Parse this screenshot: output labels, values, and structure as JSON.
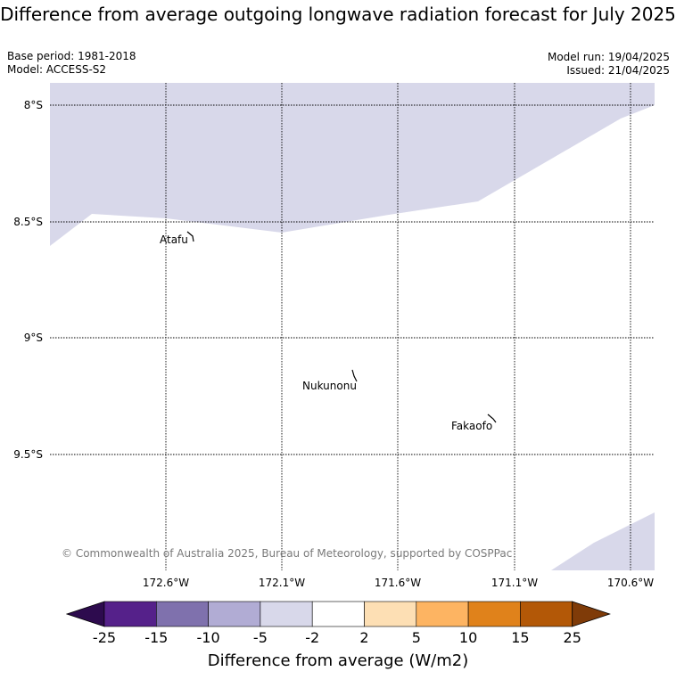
{
  "title": "Difference from average outgoing longwave radiation forecast for July 2025",
  "base_period": "Base period: 1981-2018",
  "model": "Model: ACCESS-S2",
  "model_run": "Model run: 19/04/2025",
  "issued": "Issued: 21/04/2025",
  "lat_labels": [
    "8°S",
    "8.5°S",
    "9°S",
    "9.5°S"
  ],
  "lon_labels": [
    "172.6°W",
    "172.1°W",
    "171.6°W",
    "171.1°W",
    "170.6°W"
  ],
  "places": [
    "Atafu",
    "Nukunonu",
    "Fakaofo"
  ],
  "copyright": "© Commonwealth of Australia 2025, Bureau of Meteorology, supported by COSPPac",
  "colorbar": {
    "title": "Difference from average (W/m2)",
    "ticks": [
      "-25",
      "-15",
      "-10",
      "-5",
      "-2",
      "2",
      "5",
      "10",
      "15",
      "25"
    ],
    "colors": {
      "under": "#2d0b4e",
      "bins": [
        "#55218a",
        "#7f71ad",
        "#b1acd4",
        "#d8d8ea",
        "#ffffff",
        "#fddfb4",
        "#fdb462",
        "#e0821b",
        "#b35807"
      ],
      "over": "#7f3b08"
    }
  },
  "map_fill_color": "#d8d8ea"
}
